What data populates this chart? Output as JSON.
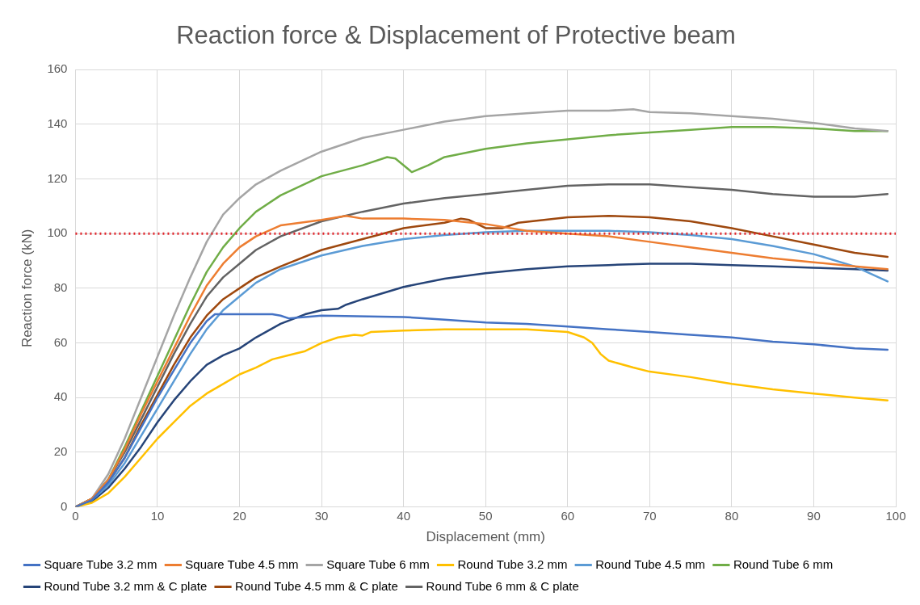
{
  "chart_data": {
    "type": "line",
    "title": "Reaction force & Displacement of Protective beam",
    "xlabel": "Displacement (mm)",
    "ylabel": "Reaction force (kN)",
    "xlim": [
      0,
      100
    ],
    "xticks": [
      0,
      10,
      20,
      30,
      40,
      50,
      60,
      70,
      80,
      90,
      100
    ],
    "ylim": [
      0,
      160
    ],
    "yticks": [
      0,
      20,
      40,
      60,
      80,
      100,
      120,
      140,
      160
    ],
    "grid": true,
    "legend": "bottom",
    "marker": "none",
    "line_style": "solid",
    "ref_lines": [
      {
        "axis": "y",
        "value": 100,
        "color": "#e0242a",
        "line_style": "dotted"
      }
    ],
    "series": [
      {
        "name": "Square Tube 3.2 mm",
        "color": "#4472c4",
        "x": [
          0,
          2,
          4,
          6,
          8,
          10,
          12,
          14,
          16,
          17,
          24,
          25,
          26,
          28,
          30,
          40,
          45,
          50,
          55,
          60,
          65,
          70,
          75,
          80,
          85,
          90,
          95,
          99
        ],
        "values": [
          0,
          2.5,
          9,
          18,
          29,
          40,
          50,
          60,
          68,
          70.5,
          70.5,
          70,
          69,
          69.5,
          70,
          69.5,
          68.5,
          67.5,
          67,
          66,
          65,
          64,
          63,
          62,
          60.5,
          59.5,
          58,
          57.5
        ]
      },
      {
        "name": "Square Tube 4.5 mm",
        "color": "#ed7d31",
        "x": [
          0,
          2,
          4,
          6,
          8,
          10,
          12,
          14,
          16,
          18,
          20,
          22,
          25,
          30,
          33,
          35,
          40,
          45,
          50,
          55,
          60,
          65,
          70,
          75,
          80,
          85,
          90,
          95,
          99
        ],
        "values": [
          0,
          3,
          10,
          21,
          34,
          46,
          58,
          70,
          81,
          89,
          95,
          99,
          103,
          105,
          106.5,
          105.5,
          105.5,
          105,
          103.5,
          101,
          100,
          99,
          97,
          95,
          93,
          91,
          89.5,
          88,
          87
        ]
      },
      {
        "name": "Square Tube 6 mm",
        "color": "#a5a5a5",
        "x": [
          0,
          2,
          4,
          6,
          8,
          10,
          12,
          14,
          16,
          18,
          20,
          22,
          25,
          30,
          35,
          40,
          45,
          50,
          55,
          60,
          65,
          68,
          70,
          75,
          80,
          85,
          90,
          95,
          99
        ],
        "values": [
          0,
          3,
          12,
          25,
          40,
          55,
          70,
          84,
          97,
          107,
          113,
          118,
          123,
          130,
          135,
          138,
          141,
          143,
          144,
          145,
          145,
          145.5,
          144.5,
          144,
          143,
          142,
          140.5,
          138.5,
          137.5
        ]
      },
      {
        "name": "Round Tube 3.2 mm",
        "color": "#ffc000",
        "x": [
          0,
          2,
          4,
          6,
          8,
          10,
          12,
          14,
          16,
          18,
          20,
          22,
          24,
          26,
          28,
          30,
          32,
          34,
          35,
          36,
          40,
          45,
          50,
          55,
          60,
          62,
          63,
          64,
          65,
          68,
          70,
          75,
          80,
          85,
          90,
          95,
          99
        ],
        "values": [
          0,
          1.5,
          5,
          11,
          18,
          25,
          31,
          37,
          41.5,
          45,
          48.5,
          51,
          54,
          55.5,
          57,
          60,
          62,
          63,
          62.7,
          64,
          64.5,
          65,
          65,
          65,
          64,
          62,
          60,
          56,
          53.5,
          51,
          49.5,
          47.5,
          45,
          43,
          41.5,
          40,
          39
        ]
      },
      {
        "name": "Round Tube 4.5 mm",
        "color": "#5b9bd5",
        "x": [
          0,
          2,
          4,
          6,
          8,
          10,
          12,
          14,
          16,
          18,
          20,
          22,
          25,
          30,
          35,
          40,
          45,
          50,
          55,
          60,
          65,
          70,
          75,
          80,
          85,
          90,
          95,
          99
        ],
        "values": [
          0,
          2.5,
          8,
          16,
          26,
          36,
          46,
          56,
          65,
          72,
          77,
          82,
          87,
          92,
          95.5,
          98,
          99.5,
          100.5,
          101,
          101,
          101,
          100.5,
          99.5,
          98,
          95.5,
          92.5,
          88,
          82.5
        ]
      },
      {
        "name": "Round Tube 6 mm",
        "color": "#70ad47",
        "x": [
          0,
          2,
          4,
          6,
          8,
          10,
          12,
          14,
          16,
          18,
          20,
          22,
          25,
          30,
          35,
          38,
          39,
          41,
          43,
          45,
          50,
          55,
          60,
          65,
          70,
          75,
          80,
          85,
          90,
          95,
          99
        ],
        "values": [
          0,
          3,
          10,
          22,
          35,
          48,
          61,
          74,
          86,
          95,
          102,
          108,
          114,
          121,
          125,
          128,
          127.5,
          122.5,
          125,
          128,
          131,
          133,
          134.5,
          136,
          137,
          138,
          139,
          139,
          138.5,
          137.5,
          137.5
        ]
      },
      {
        "name": "Round Tube 3.2 mm & C plate",
        "color": "#264478",
        "x": [
          0,
          2,
          4,
          6,
          8,
          10,
          12,
          14,
          16,
          18,
          20,
          22,
          25,
          28,
          30,
          32,
          33,
          35,
          40,
          45,
          50,
          55,
          60,
          65,
          70,
          75,
          80,
          85,
          90,
          95,
          99
        ],
        "values": [
          0,
          2,
          7,
          14,
          22,
          31,
          39,
          46,
          52,
          55.5,
          58,
          62,
          67,
          70.5,
          72,
          72.5,
          74,
          76,
          80.5,
          83.5,
          85.5,
          87,
          88,
          88.5,
          89,
          89,
          88.5,
          88,
          87.5,
          87,
          86.5
        ]
      },
      {
        "name": "Round Tube 4.5 mm & C plate",
        "color": "#9e480e",
        "x": [
          0,
          2,
          4,
          6,
          8,
          10,
          12,
          14,
          16,
          18,
          20,
          22,
          25,
          30,
          35,
          40,
          45,
          47,
          48,
          50,
          52,
          54,
          60,
          65,
          70,
          75,
          80,
          85,
          90,
          95,
          99
        ],
        "values": [
          0,
          3,
          9,
          18,
          30,
          41,
          52,
          62,
          70,
          76,
          80,
          84,
          88,
          94,
          98,
          102,
          104,
          105.5,
          105,
          102,
          102,
          104,
          106,
          106.5,
          106,
          104.5,
          102,
          99,
          96,
          93,
          91.5
        ]
      },
      {
        "name": "Round Tube 6 mm & C plate",
        "color": "#636363",
        "x": [
          0,
          2,
          4,
          6,
          8,
          10,
          12,
          14,
          16,
          18,
          20,
          22,
          25,
          30,
          35,
          40,
          45,
          50,
          55,
          60,
          65,
          70,
          75,
          80,
          85,
          90,
          95,
          99
        ],
        "values": [
          0,
          3,
          10,
          20,
          32,
          44,
          56,
          67,
          77,
          84,
          89,
          94,
          99,
          104.5,
          108,
          111,
          113,
          114.5,
          116,
          117.5,
          118,
          118,
          117,
          116,
          114.5,
          113.5,
          113.5,
          114.5
        ]
      }
    ]
  }
}
